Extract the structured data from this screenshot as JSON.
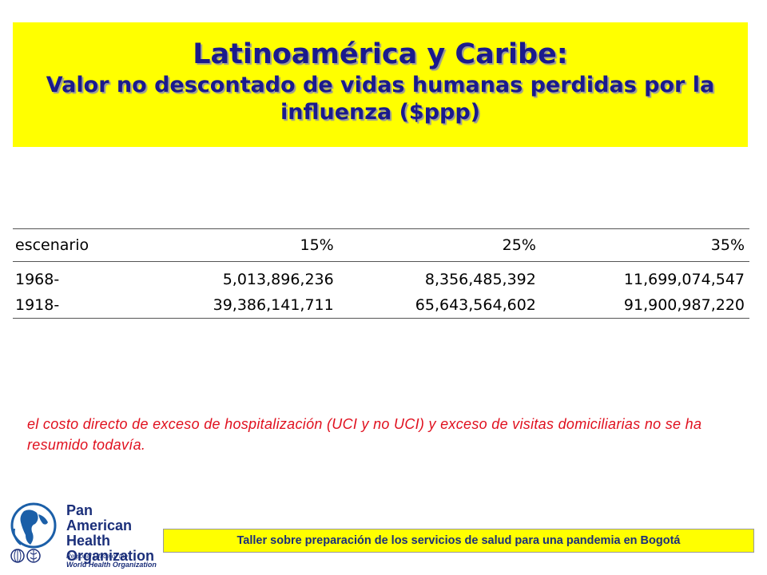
{
  "title": {
    "main": "Latinoamérica y Caribe:",
    "sub": "Valor no descontado de vidas humanas perdidas por la influenza ($ppp)"
  },
  "table": {
    "headers": [
      "escenario",
      "15%",
      "25%",
      "35%"
    ],
    "rows": [
      [
        "1968-",
        "5,013,896,236",
        "8,356,485,392",
        "11,699,074,547"
      ],
      [
        "1918-",
        "39,386,141,711",
        "65,643,564,602",
        "91,900,987,220"
      ]
    ]
  },
  "note": "el costo directo de exceso de hospitalización (UCI y no UCI) y exceso de visitas domiciliarias no se ha resumido todavía.",
  "logo": {
    "lines": [
      "Pan American",
      "Health",
      "Organization"
    ],
    "sub_lines": [
      "Regional Office of the",
      "World Health Organization"
    ],
    "icon": "paho-globe-emblem-icon"
  },
  "footer": "Taller sobre preparación de los servicios de salud para una pandemia en Bogotá",
  "colors": {
    "title_bg": "#ffff00",
    "title_text": "#1a1a8c",
    "note_text": "#e0101e",
    "footer_text": "#1b2f7a"
  }
}
